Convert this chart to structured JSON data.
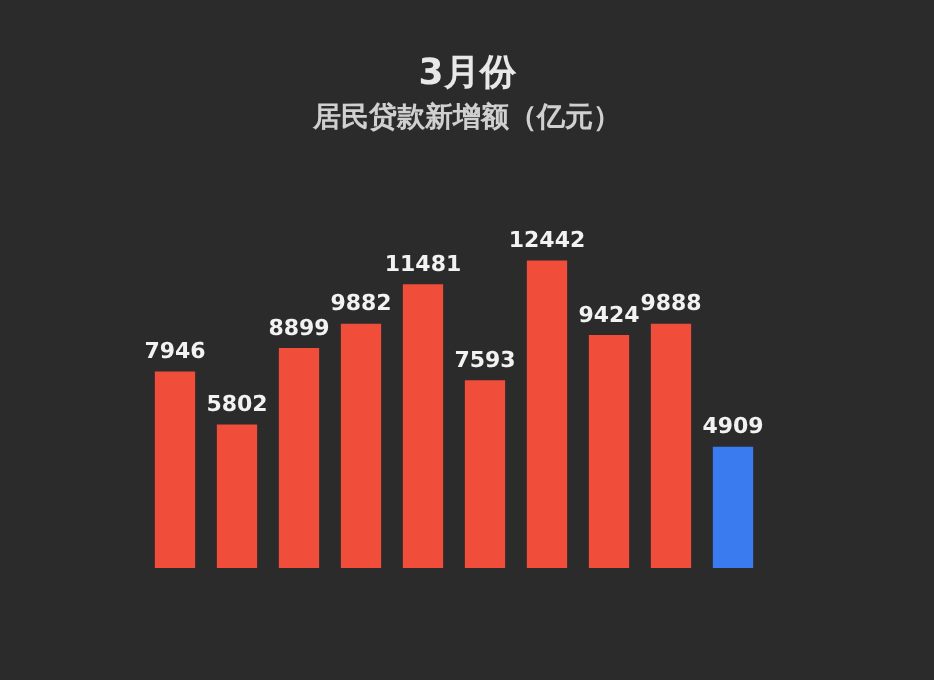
{
  "chart_data": {
    "type": "bar",
    "title": "3月份",
    "subtitle": "居民贷款新增额（亿元）",
    "categories": [
      null,
      null,
      null,
      null,
      null,
      null,
      null,
      null,
      null,
      null
    ],
    "values": [
      7946,
      5802,
      8899,
      9882,
      11481,
      7593,
      12442,
      9424,
      9888,
      4909
    ],
    "colors": [
      "#f04e3a",
      "#f04e3a",
      "#f04e3a",
      "#f04e3a",
      "#f04e3a",
      "#f04e3a",
      "#f04e3a",
      "#f04e3a",
      "#f04e3a",
      "#3a7cf0"
    ],
    "data_labels": true
  }
}
